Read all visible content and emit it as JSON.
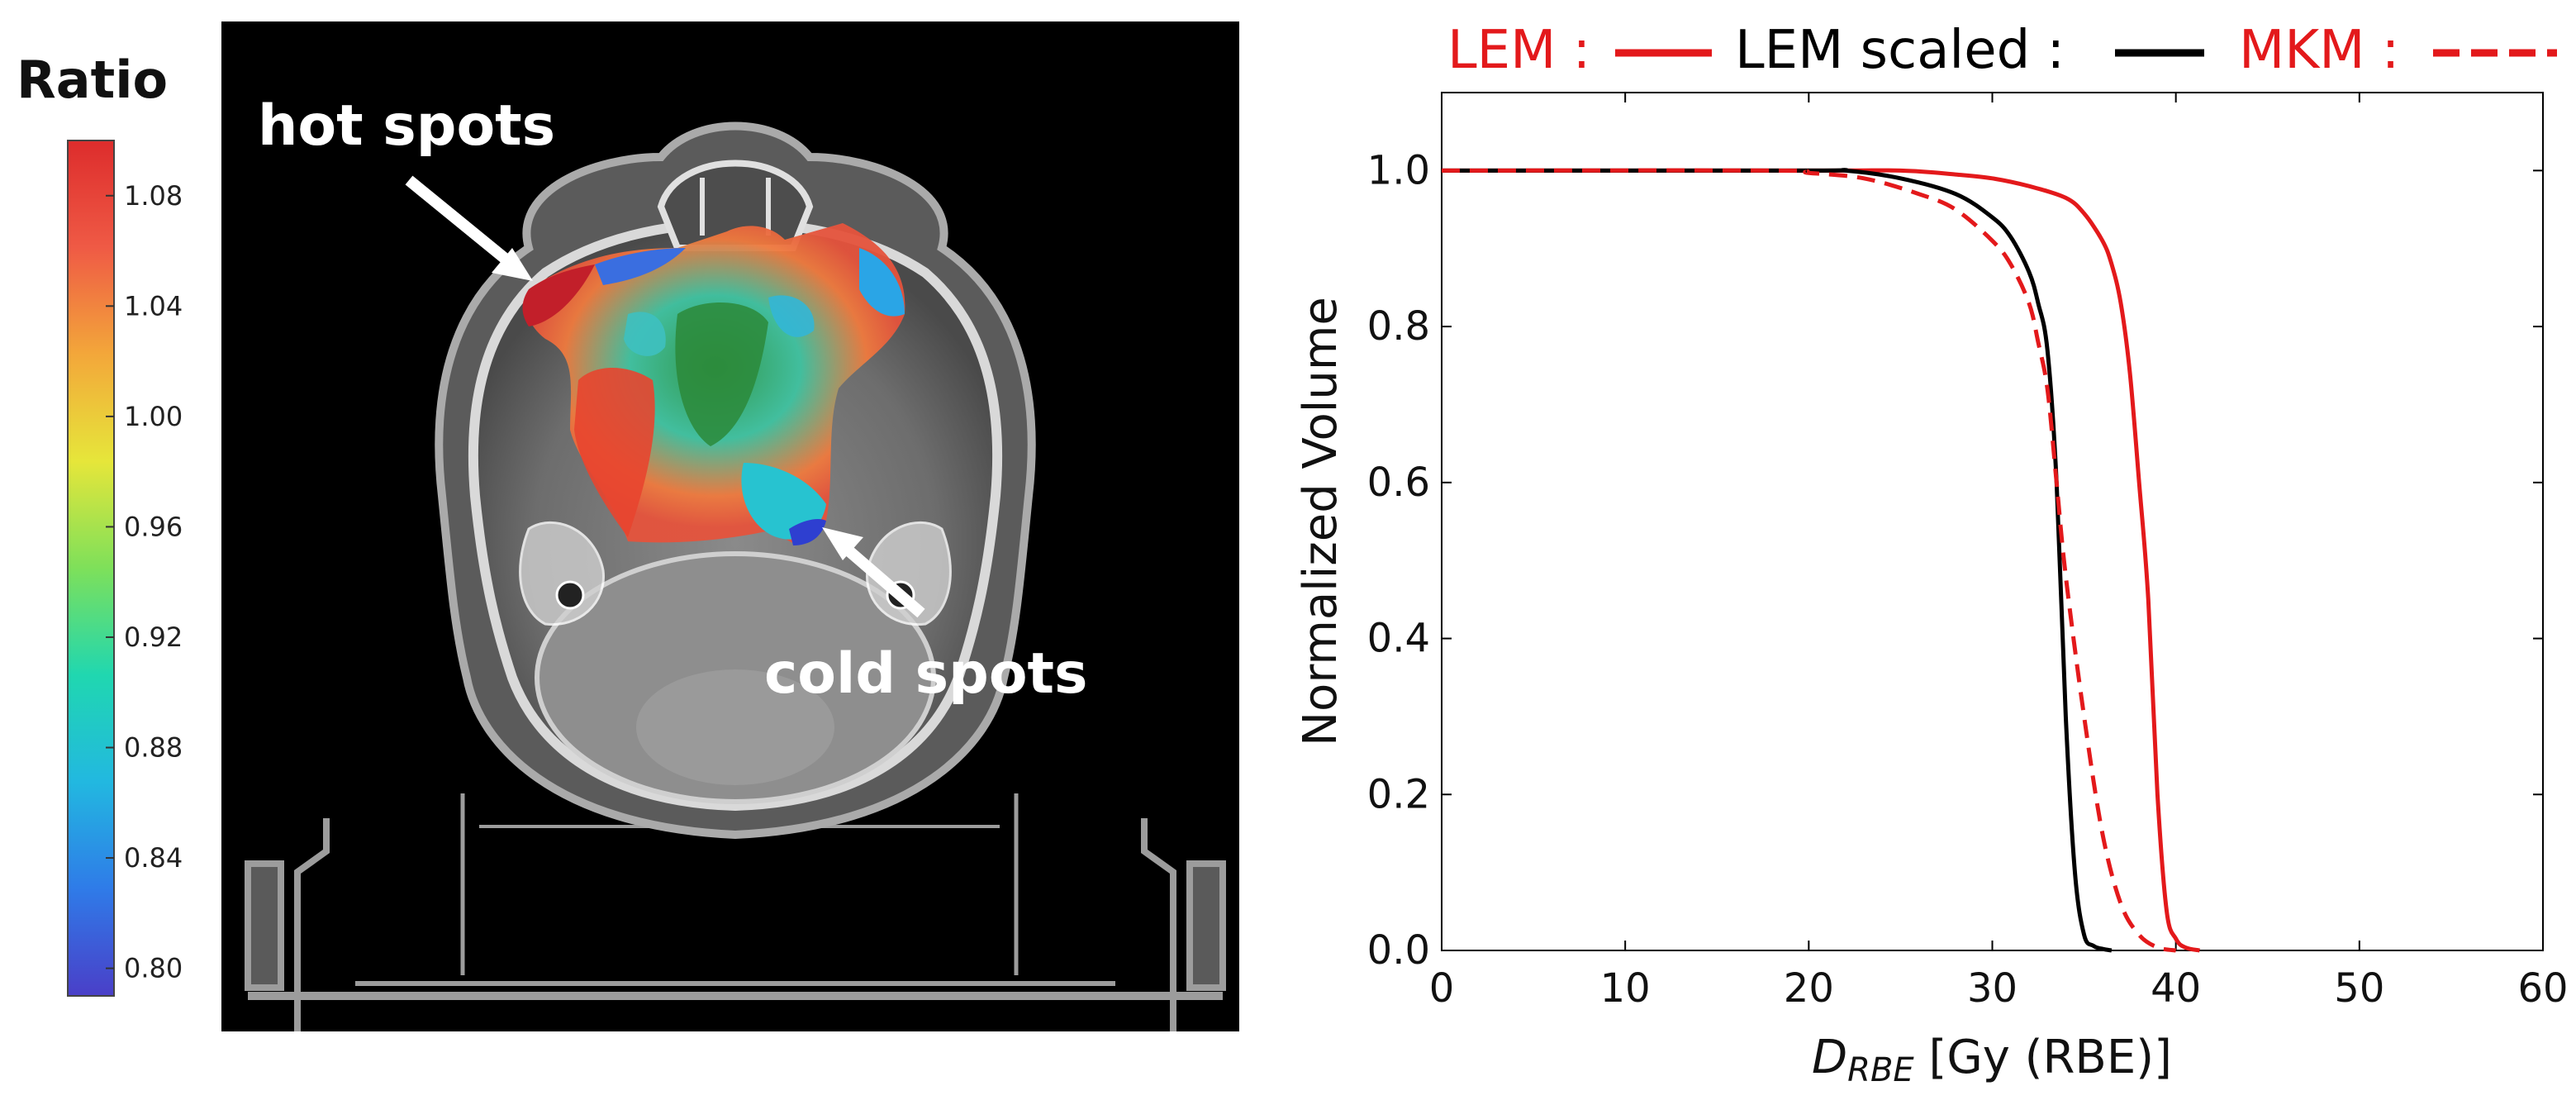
{
  "colorbar": {
    "title": "Ratio",
    "ticks": [
      "1.08",
      "1.04",
      "1.00",
      "0.96",
      "0.92",
      "0.88",
      "0.84",
      "0.80"
    ],
    "range": [
      0.79,
      1.1
    ],
    "colormap": [
      "#4a3fc8",
      "#2f7be8",
      "#22b8e0",
      "#20d7b0",
      "#7ee05a",
      "#e6e63a",
      "#f3a73a",
      "#ef5a45",
      "#dd2c2c"
    ]
  },
  "ct_image": {
    "annotations": {
      "hot_spots": "hot spots",
      "cold_spots": "cold spots"
    }
  },
  "legend": {
    "lem": "LEM :",
    "lem_scaled": "LEM scaled :",
    "mkm": "MKM :"
  },
  "chart_data": {
    "type": "line",
    "xlabel_main": "D",
    "xlabel_sub": "RBE",
    "xlabel_rest": " [Gy (RBE)]",
    "ylabel": "Normalized Volume",
    "xlim": [
      0,
      60
    ],
    "ylim": [
      0,
      1.1
    ],
    "xticks": [
      0,
      10,
      20,
      30,
      40,
      50,
      60
    ],
    "yticks": [
      0.0,
      0.2,
      0.4,
      0.6,
      0.8,
      1.0
    ],
    "xtick_labels": [
      "0",
      "10",
      "20",
      "30",
      "40",
      "50",
      "60"
    ],
    "ytick_labels": [
      "0.0",
      "0.2",
      "0.4",
      "0.6",
      "0.8",
      "1.0"
    ],
    "grid": false,
    "legend_position": "top",
    "series": [
      {
        "name": "LEM",
        "color": "#e3191b",
        "dash": "solid",
        "x": [
          0,
          20,
          25,
          28,
          30,
          32,
          34,
          35,
          36,
          36.5,
          37,
          37.5,
          38,
          38.5,
          39,
          39.5,
          40,
          40.5,
          41.3
        ],
        "y": [
          1.0,
          1.0,
          1.0,
          0.995,
          0.99,
          0.98,
          0.965,
          0.945,
          0.91,
          0.88,
          0.83,
          0.74,
          0.6,
          0.45,
          0.2,
          0.05,
          0.015,
          0.004,
          0.0
        ]
      },
      {
        "name": "LEM scaled",
        "color": "#000000",
        "dash": "solid",
        "x": [
          0,
          20,
          22,
          25,
          28,
          30,
          31,
          32,
          32.5,
          33,
          33.5,
          34,
          34.5,
          35,
          35.5,
          36,
          36.5
        ],
        "y": [
          1.0,
          1.0,
          1.0,
          0.99,
          0.97,
          0.94,
          0.915,
          0.87,
          0.83,
          0.77,
          0.6,
          0.3,
          0.1,
          0.02,
          0.006,
          0.002,
          0.0
        ]
      },
      {
        "name": "MKM",
        "color": "#e3191b",
        "dash": "dashed",
        "x": [
          0,
          18,
          20,
          23,
          26,
          28,
          30,
          31,
          32,
          32.5,
          33,
          33.5,
          34,
          35,
          36,
          37,
          38,
          39,
          40
        ],
        "y": [
          1.0,
          1.0,
          0.997,
          0.99,
          0.97,
          0.95,
          0.91,
          0.88,
          0.83,
          0.78,
          0.72,
          0.6,
          0.48,
          0.3,
          0.15,
          0.06,
          0.02,
          0.004,
          0.0
        ]
      }
    ]
  }
}
